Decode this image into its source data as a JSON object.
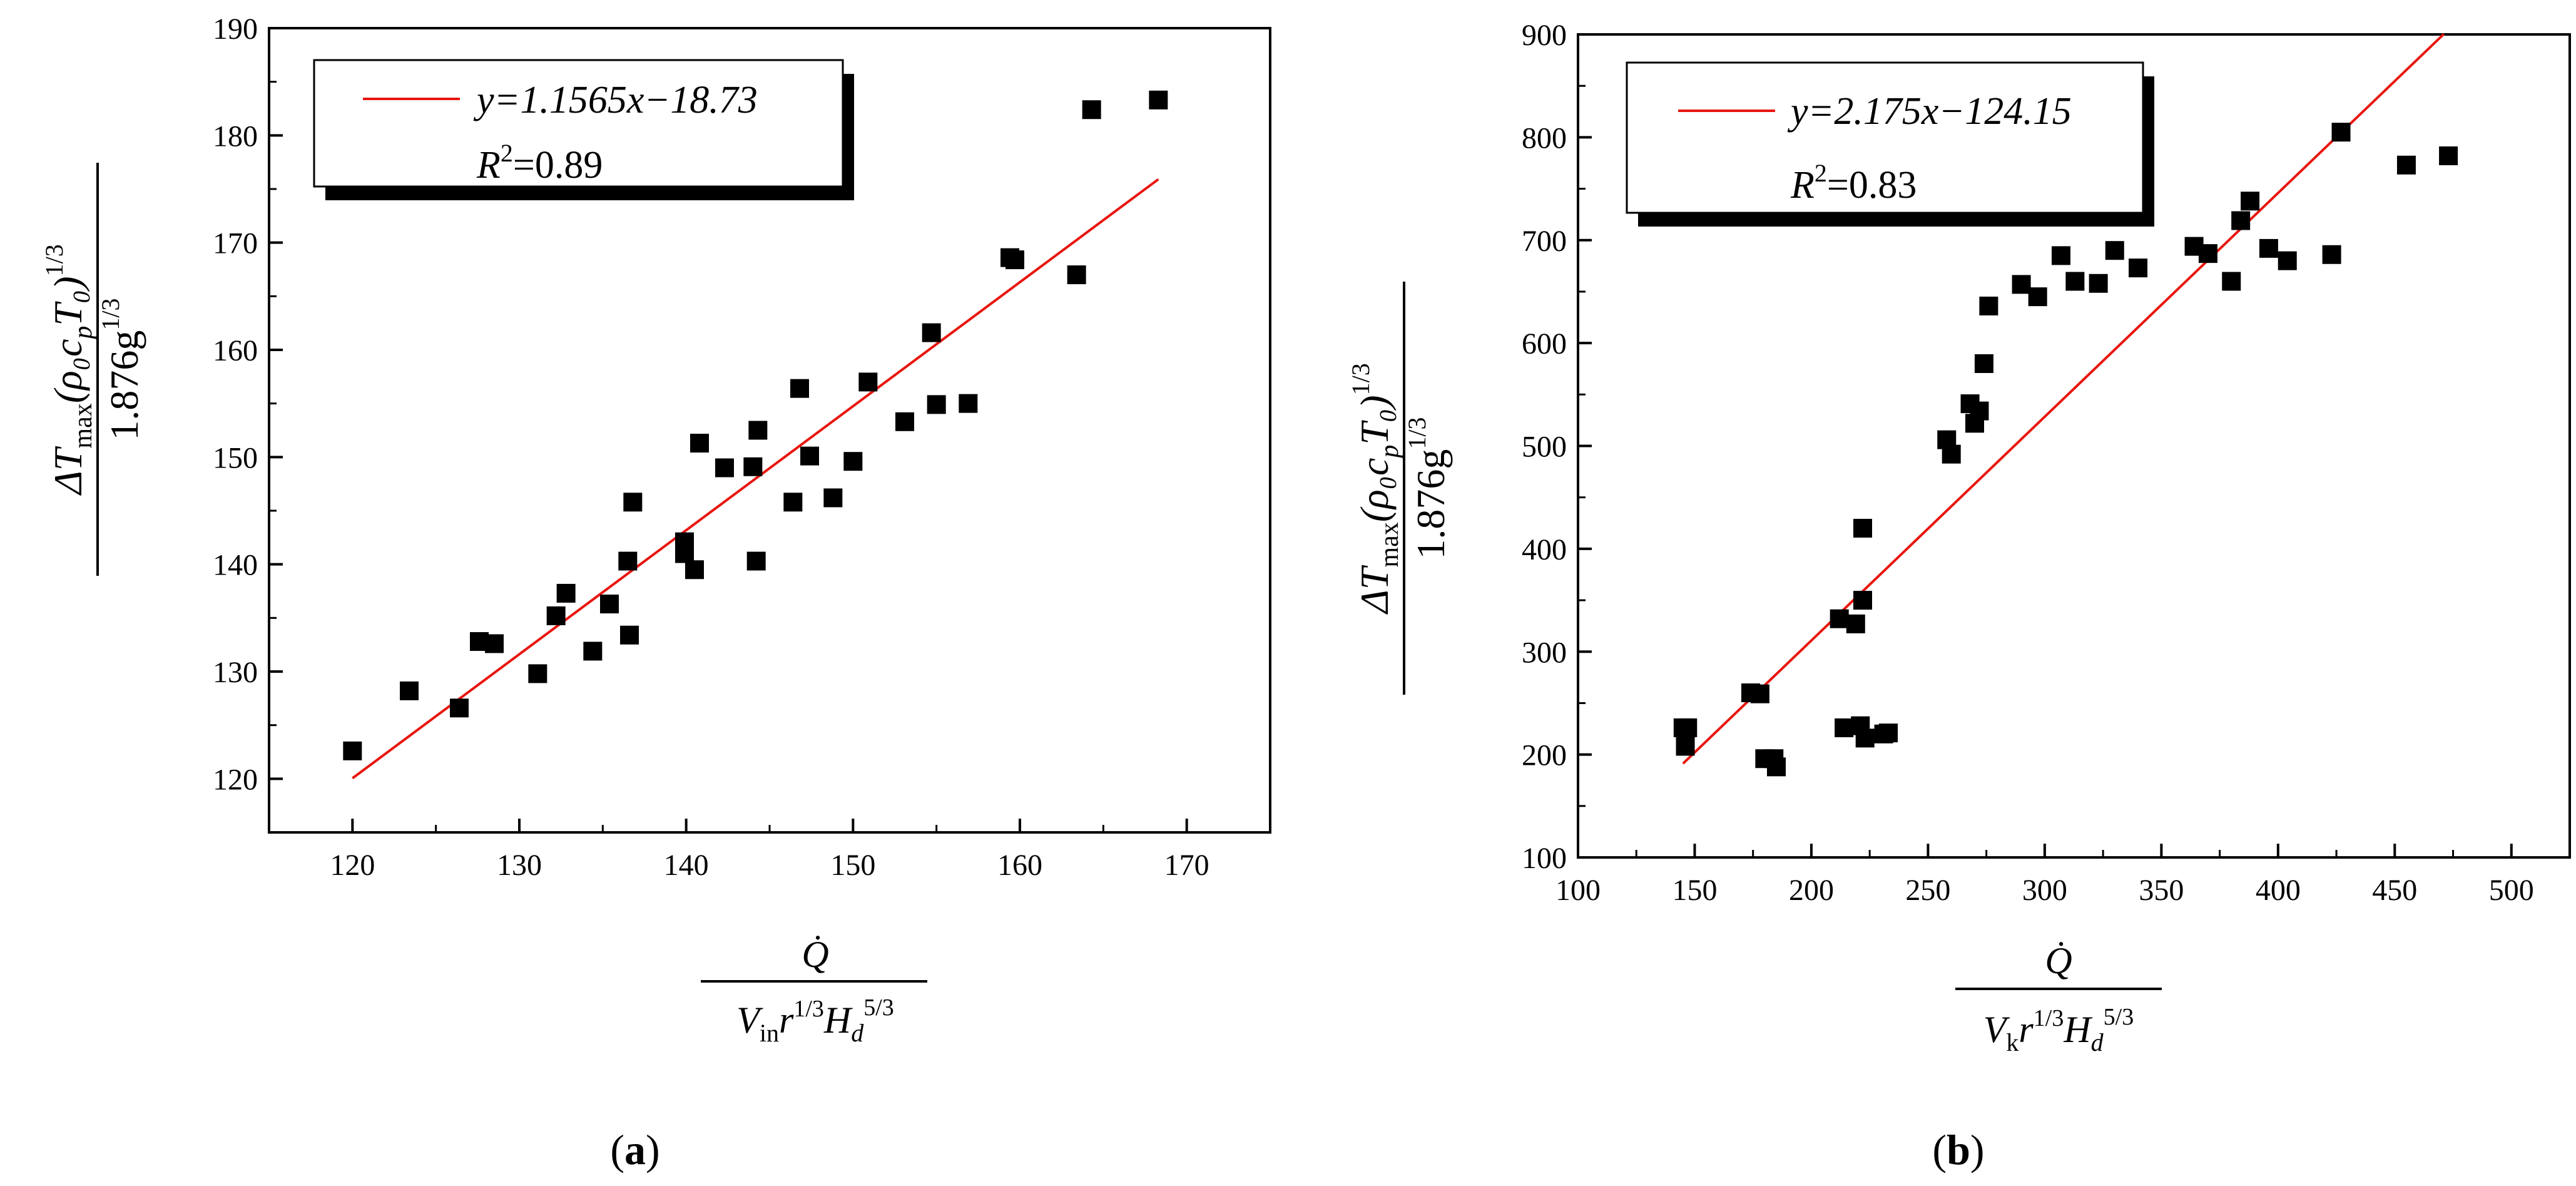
{
  "chart_data": [
    {
      "type": "scatter",
      "panel_label": "a",
      "title": "",
      "xlabel": {
        "numerator": "Q̇",
        "denominator_prefix": "V",
        "denominator_sub": "in",
        "denominator_r": "r",
        "denominator_r_exp": "1/3",
        "denominator_H": "H",
        "denominator_H_sub": "d",
        "denominator_H_exp": "5/3"
      },
      "ylabel": {
        "numerator_delta": "ΔT",
        "numerator_sub": "max",
        "numerator_paren": "(ρ₀c",
        "numerator_cp_sub": "p",
        "numerator_T0": "T₀)",
        "numerator_exp": "1/3",
        "denominator": "1.876g",
        "denominator_exp": "1/3"
      },
      "xlim": [
        115,
        175
      ],
      "ylim": [
        115,
        190
      ],
      "x_ticks": [
        120,
        130,
        140,
        150,
        160,
        170
      ],
      "y_ticks": [
        120,
        130,
        140,
        150,
        160,
        170,
        180,
        190
      ],
      "legend": {
        "position": "top-left",
        "equation": "y=1.1565x−18.73",
        "r2_label": "R",
        "r2_exp": "2",
        "r2_value": "=0.89"
      },
      "fit": {
        "slope": 1.1565,
        "intercept": -18.73,
        "x_range": [
          120,
          168.3
        ],
        "color": "#e8150e"
      },
      "points": [
        [
          120.0,
          122.6
        ],
        [
          123.4,
          128.2
        ],
        [
          126.4,
          126.6
        ],
        [
          127.6,
          132.8
        ],
        [
          128.5,
          132.6
        ],
        [
          131.1,
          129.8
        ],
        [
          132.2,
          135.2
        ],
        [
          132.8,
          137.3
        ],
        [
          134.4,
          131.9
        ],
        [
          135.4,
          136.3
        ],
        [
          136.5,
          140.3
        ],
        [
          136.6,
          133.4
        ],
        [
          136.8,
          145.8
        ],
        [
          139.9,
          142.1
        ],
        [
          139.9,
          141.0
        ],
        [
          140.5,
          139.5
        ],
        [
          140.8,
          151.3
        ],
        [
          142.3,
          149.0
        ],
        [
          144.0,
          149.1
        ],
        [
          144.2,
          140.3
        ],
        [
          144.3,
          152.5
        ],
        [
          146.4,
          145.8
        ],
        [
          146.8,
          156.4
        ],
        [
          147.4,
          150.1
        ],
        [
          148.8,
          146.2
        ],
        [
          150.0,
          149.6
        ],
        [
          150.9,
          157.0
        ],
        [
          153.1,
          153.3
        ],
        [
          154.7,
          161.6
        ],
        [
          155.0,
          154.9
        ],
        [
          156.9,
          155.0
        ],
        [
          159.4,
          168.6
        ],
        [
          159.7,
          168.4
        ],
        [
          163.4,
          167.0
        ],
        [
          164.3,
          182.4
        ],
        [
          168.3,
          183.3
        ]
      ],
      "marker_color": "#000000"
    },
    {
      "type": "scatter",
      "panel_label": "b",
      "title": "",
      "xlabel": {
        "numerator": "Q̇",
        "denominator_prefix": "V",
        "denominator_sub": "k",
        "denominator_r": "r",
        "denominator_r_exp": "1/3",
        "denominator_H": "H",
        "denominator_H_sub": "d",
        "denominator_H_exp": "5/3"
      },
      "ylabel": {
        "numerator_delta": "ΔT",
        "numerator_sub": "max",
        "numerator_paren": "(ρ₀c",
        "numerator_cp_sub": "p",
        "numerator_T0": "T₀)",
        "numerator_exp": "1/3",
        "denominator": "1.876g",
        "denominator_exp": "1/3"
      },
      "xlim": [
        100,
        525
      ],
      "ylim": [
        100,
        900
      ],
      "x_ticks": [
        100,
        150,
        200,
        250,
        300,
        350,
        400,
        450,
        500
      ],
      "y_ticks": [
        100,
        200,
        300,
        400,
        500,
        600,
        700,
        800,
        900
      ],
      "legend": {
        "position": "top-left",
        "equation": "y=2.175x−124.15",
        "r2_label": "R",
        "r2_exp": "2",
        "r2_value": "=0.83"
      },
      "fit": {
        "slope": 2.175,
        "intercept": -124.15,
        "x_range": [
          145,
          471
        ],
        "color": "#e8150e"
      },
      "points": [
        [
          145,
          226
        ],
        [
          146,
          208
        ],
        [
          147,
          226
        ],
        [
          174,
          260
        ],
        [
          178,
          259
        ],
        [
          180,
          196
        ],
        [
          184,
          196
        ],
        [
          185,
          188
        ],
        [
          212,
          332
        ],
        [
          214,
          226
        ],
        [
          219,
          327
        ],
        [
          221,
          228
        ],
        [
          222,
          350
        ],
        [
          222,
          420
        ],
        [
          223,
          216
        ],
        [
          231,
          220
        ],
        [
          233,
          221
        ],
        [
          258,
          506
        ],
        [
          260,
          492
        ],
        [
          268,
          541
        ],
        [
          270,
          522
        ],
        [
          272,
          534
        ],
        [
          274,
          580
        ],
        [
          276,
          636
        ],
        [
          290,
          657
        ],
        [
          297,
          645
        ],
        [
          307,
          685
        ],
        [
          313,
          660
        ],
        [
          323,
          658
        ],
        [
          330,
          690
        ],
        [
          340,
          673
        ],
        [
          364,
          694
        ],
        [
          370,
          687
        ],
        [
          380,
          660
        ],
        [
          384,
          719
        ],
        [
          388,
          738
        ],
        [
          396,
          692
        ],
        [
          404,
          680
        ],
        [
          423,
          686
        ],
        [
          427,
          805
        ],
        [
          455,
          773
        ],
        [
          473,
          782
        ]
      ],
      "marker_color": "#000000"
    }
  ]
}
